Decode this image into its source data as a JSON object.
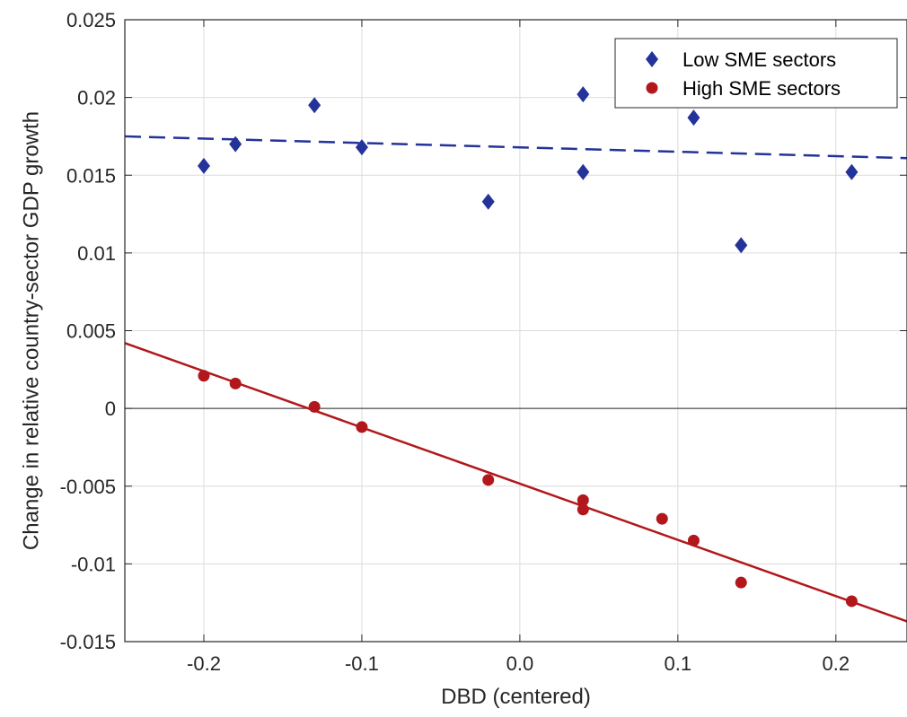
{
  "chart_data": {
    "type": "scatter",
    "xlabel": "DBD (centered)",
    "ylabel": "Change in relative country-sector GDP growth",
    "xlim": [
      -0.25,
      0.245
    ],
    "ylim": [
      -0.015,
      0.025
    ],
    "x_ticks": [
      -0.2,
      -0.1,
      0.0,
      0.1,
      0.2
    ],
    "x_tick_labels": [
      "-0.2",
      "-0.1",
      "0.0",
      "0.1",
      "0.2"
    ],
    "y_ticks": [
      -0.015,
      -0.01,
      -0.005,
      0,
      0.005,
      0.01,
      0.015,
      0.02,
      0.025
    ],
    "y_tick_labels": [
      "-0.015",
      "-0.01",
      "-0.005",
      "0",
      "0.005",
      "0.01",
      "0.015",
      "0.02",
      "0.025"
    ],
    "grid": true,
    "zero_line": true,
    "legend_position": "top-right",
    "series": [
      {
        "name": "Low SME sectors",
        "marker": "diamond",
        "color": "#24339a",
        "points": [
          {
            "x": -0.2,
            "y": 0.0156
          },
          {
            "x": -0.18,
            "y": 0.017
          },
          {
            "x": -0.13,
            "y": 0.0195
          },
          {
            "x": -0.1,
            "y": 0.0168
          },
          {
            "x": -0.02,
            "y": 0.0133
          },
          {
            "x": 0.04,
            "y": 0.0202
          },
          {
            "x": 0.04,
            "y": 0.0152
          },
          {
            "x": 0.11,
            "y": 0.0187
          },
          {
            "x": 0.14,
            "y": 0.0105
          },
          {
            "x": 0.21,
            "y": 0.0152
          }
        ],
        "fit": {
          "style": "dashed",
          "y_at_xmin": 0.0175,
          "y_at_xmax": 0.0161
        }
      },
      {
        "name": "High SME sectors",
        "marker": "circle",
        "color": "#b2181b",
        "points": [
          {
            "x": -0.2,
            "y": 0.0021
          },
          {
            "x": -0.18,
            "y": 0.0016
          },
          {
            "x": -0.13,
            "y": 0.0001
          },
          {
            "x": -0.1,
            "y": -0.0012
          },
          {
            "x": -0.02,
            "y": -0.0046
          },
          {
            "x": 0.04,
            "y": -0.0059
          },
          {
            "x": 0.04,
            "y": -0.0065
          },
          {
            "x": 0.09,
            "y": -0.0071
          },
          {
            "x": 0.11,
            "y": -0.0085
          },
          {
            "x": 0.14,
            "y": -0.0112
          },
          {
            "x": 0.21,
            "y": -0.0124
          }
        ],
        "fit": {
          "style": "solid",
          "y_at_xmin": 0.0042,
          "y_at_xmax": -0.0137
        }
      }
    ]
  }
}
